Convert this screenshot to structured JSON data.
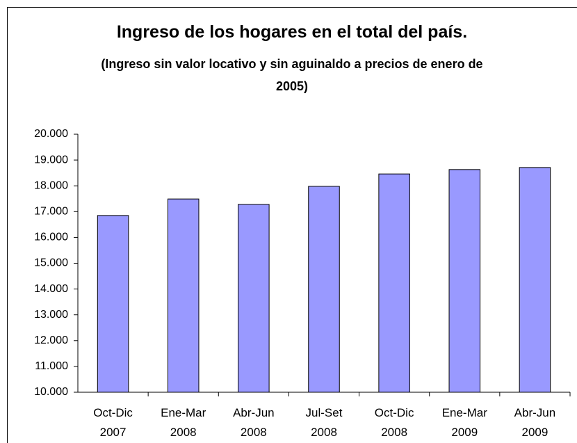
{
  "chart_data": {
    "type": "bar",
    "title": "Ingreso de los hogares en el total del país.",
    "subtitle": "(Ingreso sin valor locativo y sin aguinaldo a precios de enero de 2005)",
    "categories": [
      "Oct-Dic 2007",
      "Ene-Mar 2008",
      "Abr-Jun 2008",
      "Jul-Set 2008",
      "Oct-Dic 2008",
      "Ene-Mar 2009",
      "Abr-Jun 2009"
    ],
    "values": [
      16850,
      17490,
      17280,
      17980,
      18460,
      18630,
      18710
    ],
    "color": "#9999ff",
    "ylim": [
      10000,
      20000
    ],
    "yticks": [
      {
        "value": 10000,
        "label": "10.000"
      },
      {
        "value": 11000,
        "label": "11.000"
      },
      {
        "value": 12000,
        "label": "12.000"
      },
      {
        "value": 13000,
        "label": "13.000"
      },
      {
        "value": 14000,
        "label": "14.000"
      },
      {
        "value": 15000,
        "label": "15.000"
      },
      {
        "value": 16000,
        "label": "16.000"
      },
      {
        "value": 17000,
        "label": "17.000"
      },
      {
        "value": 18000,
        "label": "18.000"
      },
      {
        "value": 19000,
        "label": "19.000"
      },
      {
        "value": 20000,
        "label": "20.000"
      }
    ],
    "grid": false
  }
}
